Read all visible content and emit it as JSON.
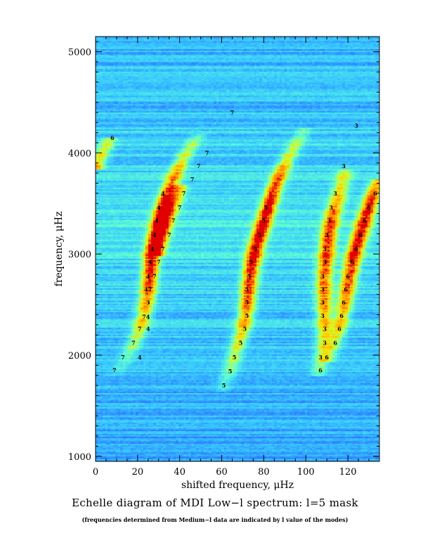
{
  "chart_data": {
    "type": "heatmap",
    "title": "Echelle diagram of MDI Low−l spectrum: l=5 mask",
    "subtitle": "(frequencies determined from Medium−l data are indicated by  l value of the modes)",
    "xlabel": "shifted frequency, μHz",
    "ylabel": "frequency, μHz",
    "xlim": [
      0,
      135
    ],
    "ylim": [
      950,
      5150
    ],
    "x_ticks": [
      0,
      20,
      40,
      60,
      80,
      100,
      120
    ],
    "y_ticks": [
      1000,
      2000,
      3000,
      4000,
      5000
    ],
    "colormap": [
      "#1a2bff",
      "#2a6bff",
      "#38c8ff",
      "#5fffd4",
      "#c8ff3a",
      "#ffd400",
      "#ff7a00",
      "#e00000"
    ],
    "mode_labels": [
      {
        "l": "6",
        "x": 8,
        "y": 4150
      },
      {
        "l": "7",
        "x": 65,
        "y": 4400
      },
      {
        "l": "7",
        "x": 53,
        "y": 4000
      },
      {
        "l": "7",
        "x": 49,
        "y": 3870
      },
      {
        "l": "7",
        "x": 46,
        "y": 3740
      },
      {
        "l": "4",
        "x": 32,
        "y": 3600
      },
      {
        "l": "7",
        "x": 42,
        "y": 3600
      },
      {
        "l": "4",
        "x": 30,
        "y": 3460
      },
      {
        "l": "7",
        "x": 40,
        "y": 3460
      },
      {
        "l": "4",
        "x": 29,
        "y": 3330
      },
      {
        "l": "7",
        "x": 37,
        "y": 3330
      },
      {
        "l": "4",
        "x": 28,
        "y": 3190
      },
      {
        "l": "7",
        "x": 35,
        "y": 3190
      },
      {
        "l": "4",
        "x": 27,
        "y": 3050
      },
      {
        "l": "7",
        "x": 32,
        "y": 3050
      },
      {
        "l": "4",
        "x": 26,
        "y": 2920
      },
      {
        "l": "7",
        "x": 30,
        "y": 2920
      },
      {
        "l": "4",
        "x": 25,
        "y": 2780
      },
      {
        "l": "7",
        "x": 28,
        "y": 2780
      },
      {
        "l": "47",
        "x": 25,
        "y": 2650
      },
      {
        "l": "3",
        "x": 25,
        "y": 2520
      },
      {
        "l": "74",
        "x": 24,
        "y": 2380
      },
      {
        "l": "7",
        "x": 21,
        "y": 2260
      },
      {
        "l": "4",
        "x": 25,
        "y": 2260
      },
      {
        "l": "7",
        "x": 18,
        "y": 2120
      },
      {
        "l": "7",
        "x": 13,
        "y": 1980
      },
      {
        "l": "4",
        "x": 21,
        "y": 1980
      },
      {
        "l": "7",
        "x": 9,
        "y": 1850
      },
      {
        "l": "5",
        "x": 61,
        "y": 1700
      },
      {
        "l": "5",
        "x": 64,
        "y": 1840
      },
      {
        "l": "5",
        "x": 66,
        "y": 1980
      },
      {
        "l": "5",
        "x": 69,
        "y": 2120
      },
      {
        "l": "5",
        "x": 71,
        "y": 2260
      },
      {
        "l": "5",
        "x": 72,
        "y": 2390
      },
      {
        "l": "5",
        "x": 72,
        "y": 2520
      },
      {
        "l": "5",
        "x": 72,
        "y": 2650
      },
      {
        "l": "5",
        "x": 73,
        "y": 2780
      },
      {
        "l": "5",
        "x": 74,
        "y": 2920
      },
      {
        "l": "5",
        "x": 76,
        "y": 3050
      },
      {
        "l": "5",
        "x": 78,
        "y": 3190
      },
      {
        "l": "5",
        "x": 80,
        "y": 3330
      },
      {
        "l": "5",
        "x": 81,
        "y": 3460
      },
      {
        "l": "6",
        "x": 107,
        "y": 1850
      },
      {
        "l": "3",
        "x": 107,
        "y": 1980
      },
      {
        "l": "6",
        "x": 110,
        "y": 1980
      },
      {
        "l": "3",
        "x": 109,
        "y": 2120
      },
      {
        "l": "6",
        "x": 114,
        "y": 2120
      },
      {
        "l": "3",
        "x": 109,
        "y": 2260
      },
      {
        "l": "6",
        "x": 116,
        "y": 2260
      },
      {
        "l": "3",
        "x": 108,
        "y": 2390
      },
      {
        "l": "6",
        "x": 117,
        "y": 2390
      },
      {
        "l": "3",
        "x": 108,
        "y": 2520
      },
      {
        "l": "6",
        "x": 118,
        "y": 2520
      },
      {
        "l": "3",
        "x": 108,
        "y": 2650
      },
      {
        "l": "6",
        "x": 119,
        "y": 2650
      },
      {
        "l": "3",
        "x": 108,
        "y": 2780
      },
      {
        "l": "6",
        "x": 120,
        "y": 2780
      },
      {
        "l": "3",
        "x": 109,
        "y": 2920
      },
      {
        "l": "6",
        "x": 122,
        "y": 2920
      },
      {
        "l": "3",
        "x": 109,
        "y": 3050
      },
      {
        "l": "6",
        "x": 124,
        "y": 3050
      },
      {
        "l": "3",
        "x": 110,
        "y": 3190
      },
      {
        "l": "6",
        "x": 126,
        "y": 3190
      },
      {
        "l": "3",
        "x": 111,
        "y": 3330
      },
      {
        "l": "6",
        "x": 128,
        "y": 3330
      },
      {
        "l": "3",
        "x": 112,
        "y": 3460
      },
      {
        "l": "6",
        "x": 130,
        "y": 3460
      },
      {
        "l": "3",
        "x": 114,
        "y": 3600
      },
      {
        "l": "6",
        "x": 133,
        "y": 3600
      },
      {
        "l": "3",
        "x": 118,
        "y": 3870
      },
      {
        "l": "3",
        "x": 124,
        "y": 4270
      }
    ],
    "ridges": [
      {
        "name": "l=4/7 ridge",
        "points": [
          [
            9,
            1800,
            0.05
          ],
          [
            14,
            1950,
            0.15
          ],
          [
            18,
            2100,
            0.3
          ],
          [
            21,
            2250,
            0.45
          ],
          [
            23,
            2400,
            0.55
          ],
          [
            25,
            2600,
            0.7
          ],
          [
            26,
            2800,
            0.85
          ],
          [
            27,
            3000,
            0.95
          ],
          [
            29,
            3200,
            1.0
          ],
          [
            31,
            3400,
            0.95
          ],
          [
            34,
            3600,
            0.8
          ],
          [
            38,
            3800,
            0.6
          ],
          [
            43,
            4000,
            0.4
          ],
          [
            50,
            4200,
            0.15
          ]
        ]
      },
      {
        "name": "l=4/7 inner ridge",
        "points": [
          [
            29,
            3000,
            0.6
          ],
          [
            33,
            3300,
            0.7
          ],
          [
            37,
            3500,
            0.6
          ],
          [
            41,
            3700,
            0.45
          ]
        ]
      },
      {
        "name": "l=5 ridge",
        "points": [
          [
            60,
            1650,
            0.1
          ],
          [
            64,
            1850,
            0.25
          ],
          [
            67,
            2050,
            0.4
          ],
          [
            70,
            2250,
            0.55
          ],
          [
            72,
            2450,
            0.7
          ],
          [
            73,
            2650,
            0.8
          ],
          [
            74,
            2850,
            0.9
          ],
          [
            76,
            3050,
            1.0
          ],
          [
            79,
            3250,
            1.0
          ],
          [
            82,
            3450,
            0.95
          ],
          [
            85,
            3650,
            0.85
          ],
          [
            89,
            3850,
            0.6
          ],
          [
            94,
            4050,
            0.35
          ],
          [
            100,
            4250,
            0.15
          ]
        ]
      },
      {
        "name": "l=3/6 ridge",
        "points": [
          [
            106,
            1800,
            0.2
          ],
          [
            108,
            2000,
            0.35
          ],
          [
            109,
            2200,
            0.5
          ],
          [
            109,
            2400,
            0.6
          ],
          [
            109,
            2600,
            0.7
          ],
          [
            109,
            2800,
            0.75
          ],
          [
            110,
            3000,
            0.8
          ],
          [
            111,
            3200,
            0.8
          ],
          [
            113,
            3400,
            0.7
          ],
          [
            116,
            3600,
            0.5
          ],
          [
            119,
            3850,
            0.3
          ]
        ]
      },
      {
        "name": "l=6 ridge",
        "points": [
          [
            110,
            1950,
            0.25
          ],
          [
            114,
            2150,
            0.4
          ],
          [
            117,
            2350,
            0.55
          ],
          [
            119,
            2550,
            0.65
          ],
          [
            121,
            2800,
            0.8
          ],
          [
            123,
            3000,
            0.9
          ],
          [
            126,
            3200,
            0.95
          ],
          [
            129,
            3400,
            0.9
          ],
          [
            132,
            3600,
            0.75
          ],
          [
            135,
            3750,
            0.5
          ]
        ]
      },
      {
        "name": "wrap ridge",
        "points": [
          [
            0,
            3850,
            0.6
          ],
          [
            3,
            4000,
            0.45
          ],
          [
            7,
            4150,
            0.3
          ]
        ]
      }
    ]
  }
}
